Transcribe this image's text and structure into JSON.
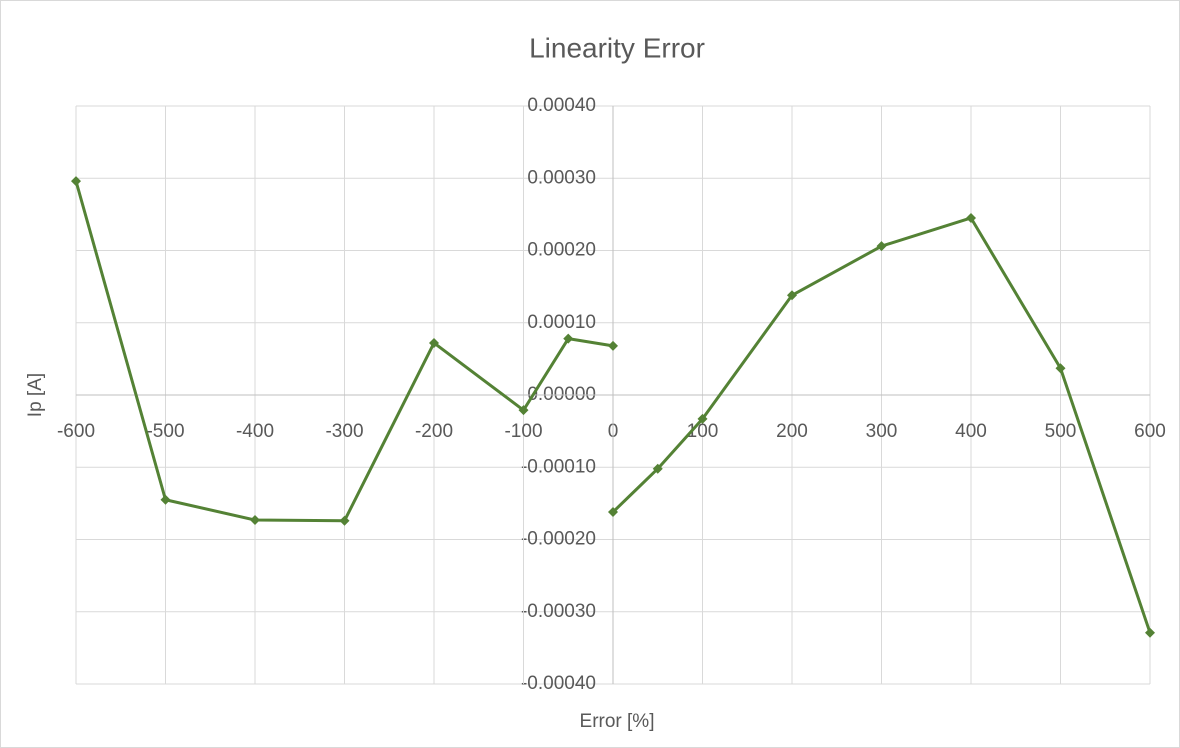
{
  "chart_data": {
    "type": "line",
    "title": "Linearity Error",
    "x_label": "Error [%]",
    "y_label": "Ip [A]",
    "series": [
      {
        "color": "#548235",
        "x": [
          -600,
          -500,
          -400,
          -300,
          -200,
          -100,
          -50,
          0
        ],
        "values": [
          0.000296,
          -0.000145,
          -0.000173,
          -0.000174,
          7.2e-05,
          -2.1e-05,
          7.8e-05,
          6.8e-05
        ]
      },
      {
        "color": "#548235",
        "x": [
          0,
          50,
          100,
          200,
          300,
          400,
          500,
          600
        ],
        "values": [
          -0.000162,
          -0.000102,
          -3.3e-05,
          0.000138,
          0.000206,
          0.000245,
          3.7e-05,
          -0.000329
        ]
      }
    ],
    "xlim": [
      -600,
      600
    ],
    "xticks": [
      -600,
      -500,
      -400,
      -300,
      -200,
      -100,
      0,
      100,
      200,
      300,
      400,
      500,
      600
    ],
    "ylim": [
      -0.0004,
      0.0004
    ],
    "yticks": [
      {
        "value": -0.0004,
        "label": "-0.00040"
      },
      {
        "value": -0.0003,
        "label": "-0.00030"
      },
      {
        "value": -0.0002,
        "label": "-0.00020"
      },
      {
        "value": -0.0001,
        "label": "-0.00010"
      },
      {
        "value": 0,
        "label": "0.00000"
      },
      {
        "value": 0.0001,
        "label": "0.00010"
      },
      {
        "value": 0.0002,
        "label": "0.00020"
      },
      {
        "value": 0.0003,
        "label": "0.00030"
      },
      {
        "value": 0.0004,
        "label": "0.00040"
      }
    ],
    "grid": true
  }
}
